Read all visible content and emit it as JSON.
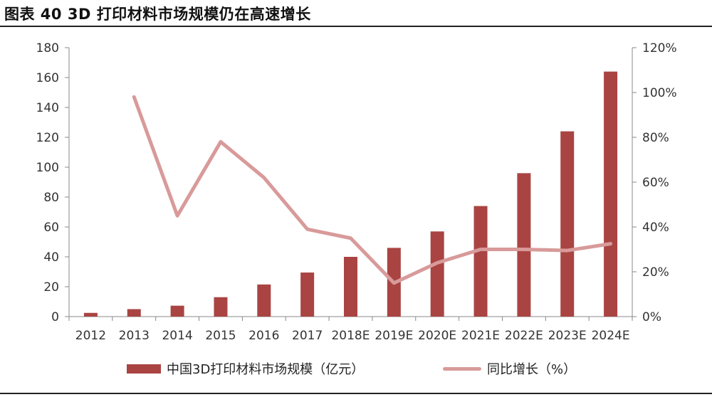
{
  "title": "图表 40 3D 打印材料市场规模仍在高速增长",
  "chart_data": {
    "type": "bar",
    "categories": [
      "2012",
      "2013",
      "2014",
      "2015",
      "2016",
      "2017",
      "2018E",
      "2019E",
      "2020E",
      "2021E",
      "2022E",
      "2023E",
      "2024E"
    ],
    "series": [
      {
        "name": "中国3D打印材料市场规模（亿元）",
        "type": "bar",
        "axis": "left",
        "values": [
          2.5,
          5,
          7.3,
          13,
          21.5,
          29.5,
          40,
          46,
          57,
          74,
          96,
          124,
          164
        ]
      },
      {
        "name": "同比增长（%）",
        "type": "line",
        "axis": "right",
        "values": [
          null,
          98,
          45,
          78,
          62,
          39,
          35,
          15,
          24,
          30,
          30,
          29.5,
          32.5
        ]
      }
    ],
    "y_left": {
      "min": 0,
      "max": 180,
      "step": 20,
      "ticks": [
        "0",
        "20",
        "40",
        "60",
        "80",
        "100",
        "120",
        "140",
        "160",
        "180"
      ]
    },
    "y_right": {
      "min": 0,
      "max": 120,
      "step": 20,
      "ticks": [
        "0%",
        "20%",
        "40%",
        "60%",
        "80%",
        "100%",
        "120%"
      ]
    },
    "grid": false,
    "legend_position": "bottom",
    "colors": {
      "bar": "#A94442",
      "line": "#D89A9A"
    }
  },
  "legend": {
    "bar_label": "中国3D打印材料市场规模（亿元）",
    "line_label": "同比增长（%）"
  }
}
